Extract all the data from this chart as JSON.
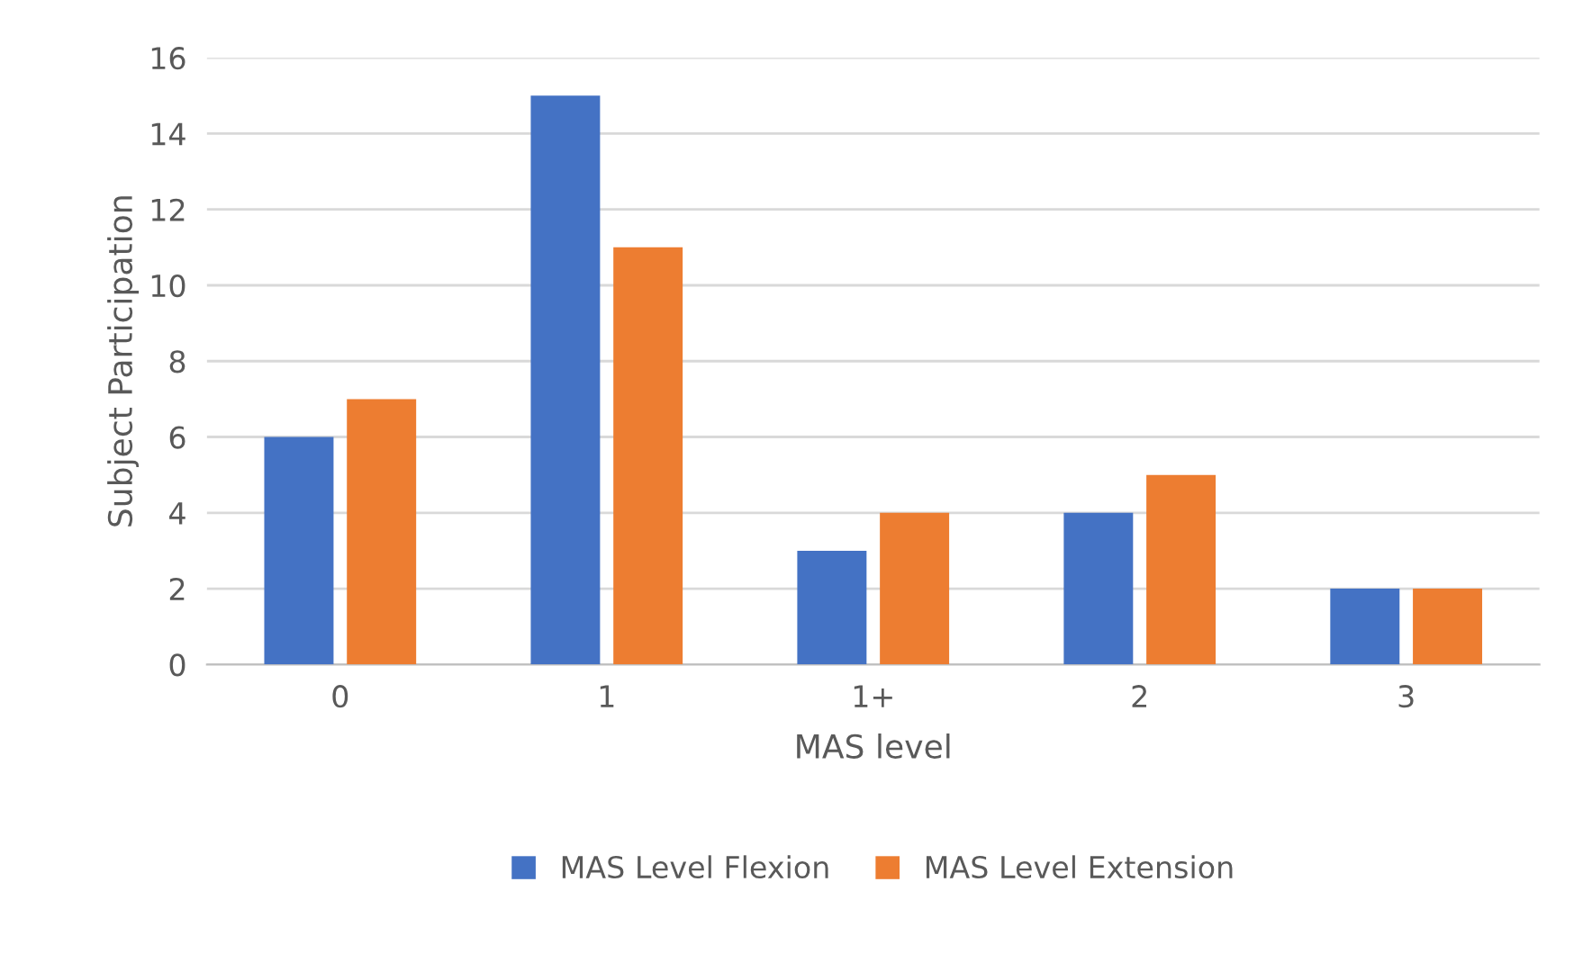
{
  "chart_data": {
    "type": "bar",
    "xlabel": "MAS level",
    "ylabel": "Subject Participation",
    "categories": [
      "0",
      "1",
      "1+",
      "2",
      "3"
    ],
    "series": [
      {
        "name": "MAS Level Flexion",
        "color": "#4472c4",
        "values": [
          6,
          15,
          3,
          4,
          2
        ]
      },
      {
        "name": "MAS Level Extension",
        "color": "#ed7d31",
        "values": [
          7,
          11,
          4,
          5,
          2
        ]
      }
    ],
    "ylim": [
      0,
      16
    ],
    "yticks": [
      0,
      2,
      4,
      6,
      8,
      10,
      12,
      14,
      16
    ],
    "grid": "y",
    "legend": "bottom"
  }
}
